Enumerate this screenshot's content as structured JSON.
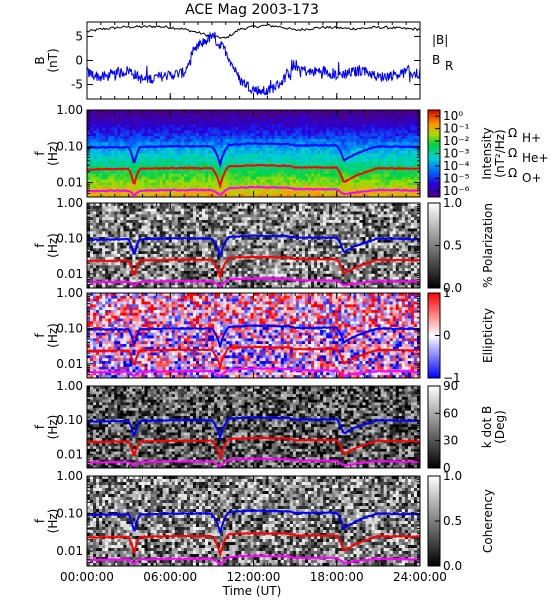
{
  "chart_data": {
    "type": "heatmap",
    "title": "ACE Mag 2003-173",
    "xlabel": "Time (UT)",
    "x_ticks": [
      "00:00:00",
      "06:00:00",
      "12:00:00",
      "18:00:00",
      "24:00:00"
    ],
    "x_range_hours": [
      0,
      24
    ],
    "line_panel": {
      "type": "line",
      "ylabel": "B",
      "yunit": "(nT)",
      "ylim": [
        -8,
        8
      ],
      "y_ticks": [
        "5",
        "0",
        "-5"
      ],
      "y_tick_values": [
        5,
        0,
        -5
      ],
      "legend": [
        "|B|",
        "B",
        "R"
      ],
      "series": [
        {
          "name": "|B|",
          "color": "#000000",
          "x": [
            0,
            1,
            2,
            3,
            4,
            5,
            6,
            7,
            8,
            9,
            10,
            11,
            12,
            13,
            14,
            15,
            16,
            17,
            18,
            19,
            20,
            21,
            22,
            23,
            24
          ],
          "y": [
            6.0,
            6.5,
            6.8,
            7.0,
            7.0,
            7.1,
            6.9,
            6.5,
            5.8,
            5.0,
            4.6,
            6.5,
            7.0,
            7.3,
            7.0,
            6.3,
            6.6,
            6.9,
            6.8,
            6.6,
            6.7,
            6.9,
            6.8,
            6.6,
            6.5
          ]
        },
        {
          "name": "B_R",
          "color": "#0000ff",
          "x": [
            0,
            1,
            2,
            3,
            4,
            5,
            6,
            7,
            8,
            9,
            10,
            11,
            12,
            13,
            14,
            15,
            16,
            17,
            18,
            19,
            20,
            21,
            22,
            23,
            24
          ],
          "y": [
            -2.5,
            -3.5,
            -3.0,
            -2.0,
            -4.0,
            -3.5,
            -3.0,
            -2.5,
            3.0,
            5.0,
            2.0,
            -4.0,
            -6.0,
            -6.5,
            -4.5,
            -1.0,
            -2.5,
            -2.0,
            -3.0,
            -2.5,
            -2.0,
            -3.5,
            -3.0,
            -2.5,
            -2.8
          ]
        }
      ]
    },
    "freq_axis": {
      "ylabel": "f",
      "yunit": "(Hz)",
      "scale": "log",
      "ylim": [
        0.004,
        1.0
      ],
      "y_ticks": [
        "1.00",
        "0.10",
        "0.01"
      ],
      "y_tick_values": [
        1.0,
        0.1,
        0.01
      ]
    },
    "gyro_lines": {
      "legend": [
        {
          "label": "Ω",
          "sub": "H+",
          "color": "#0000ff"
        },
        {
          "label": "Ω",
          "sub": "He+",
          "color": "#ff0000"
        },
        {
          "label": "Ω",
          "sub": "O+",
          "color": "#ff00ff"
        }
      ],
      "H+": {
        "x": [
          0,
          3,
          3.4,
          3.8,
          6,
          9,
          9.6,
          10.2,
          12,
          14.5,
          15,
          18,
          18.5,
          21,
          24
        ],
        "y": [
          0.092,
          0.095,
          0.03,
          0.095,
          0.1,
          0.1,
          0.03,
          0.11,
          0.12,
          0.115,
          0.105,
          0.105,
          0.04,
          0.1,
          0.095
        ]
      },
      "He+": {
        "x": [
          0,
          3,
          3.4,
          3.8,
          6,
          9,
          9.6,
          10.2,
          12,
          14.5,
          15,
          18,
          18.5,
          21,
          24
        ],
        "y": [
          0.023,
          0.024,
          0.008,
          0.024,
          0.025,
          0.025,
          0.008,
          0.028,
          0.03,
          0.029,
          0.026,
          0.026,
          0.01,
          0.025,
          0.024
        ]
      },
      "O+": {
        "x": [
          0,
          3,
          3.4,
          3.8,
          6,
          9,
          9.6,
          10.2,
          12,
          14.5,
          15,
          18,
          18.5,
          21,
          24
        ],
        "y": [
          0.0058,
          0.006,
          0.0045,
          0.006,
          0.0062,
          0.0062,
          0.0045,
          0.007,
          0.0075,
          0.0072,
          0.0066,
          0.0065,
          0.0048,
          0.0063,
          0.006
        ]
      }
    },
    "spectral_panels": [
      {
        "name": "intensity",
        "cbar_label": "Intensity",
        "cbar_unit": "(nT²/Hz)",
        "colormap": "rainbow",
        "cbar_ticks": [
          "10⁰",
          "10⁻¹",
          "10⁻²",
          "10⁻³",
          "10⁻⁴",
          "10⁻⁵",
          "10⁻⁶"
        ],
        "cbar_tick_values": [
          0,
          -1,
          -2,
          -3,
          -4,
          -5,
          -6
        ],
        "cbar_range": [
          -6.5,
          0.5
        ]
      },
      {
        "name": "polarization",
        "cbar_label": "% Polarization",
        "colormap": "gray",
        "cbar_ticks": [
          "1.0",
          "0.5",
          "0.0"
        ],
        "cbar_tick_values": [
          1.0,
          0.5,
          0.0
        ],
        "cbar_range": [
          0,
          1
        ]
      },
      {
        "name": "ellipticity",
        "cbar_label": "Ellipticity",
        "colormap": "bwr",
        "cbar_ticks": [
          "1",
          "0",
          "−1"
        ],
        "cbar_tick_values": [
          1,
          0,
          -1
        ],
        "cbar_range": [
          -1,
          1
        ]
      },
      {
        "name": "kdotb",
        "cbar_label": "k dot B",
        "cbar_unit": "(Deg)",
        "colormap": "gray",
        "cbar_ticks": [
          "90",
          "60",
          "30",
          "0"
        ],
        "cbar_tick_values": [
          90,
          60,
          30,
          0
        ],
        "cbar_range": [
          0,
          90
        ]
      },
      {
        "name": "coherency",
        "cbar_label": "Coherency",
        "colormap": "gray",
        "cbar_ticks": [
          "1.0",
          "0.5",
          "0.0"
        ],
        "cbar_tick_values": [
          1.0,
          0.5,
          0.0
        ],
        "cbar_range": [
          0,
          1
        ]
      }
    ]
  }
}
